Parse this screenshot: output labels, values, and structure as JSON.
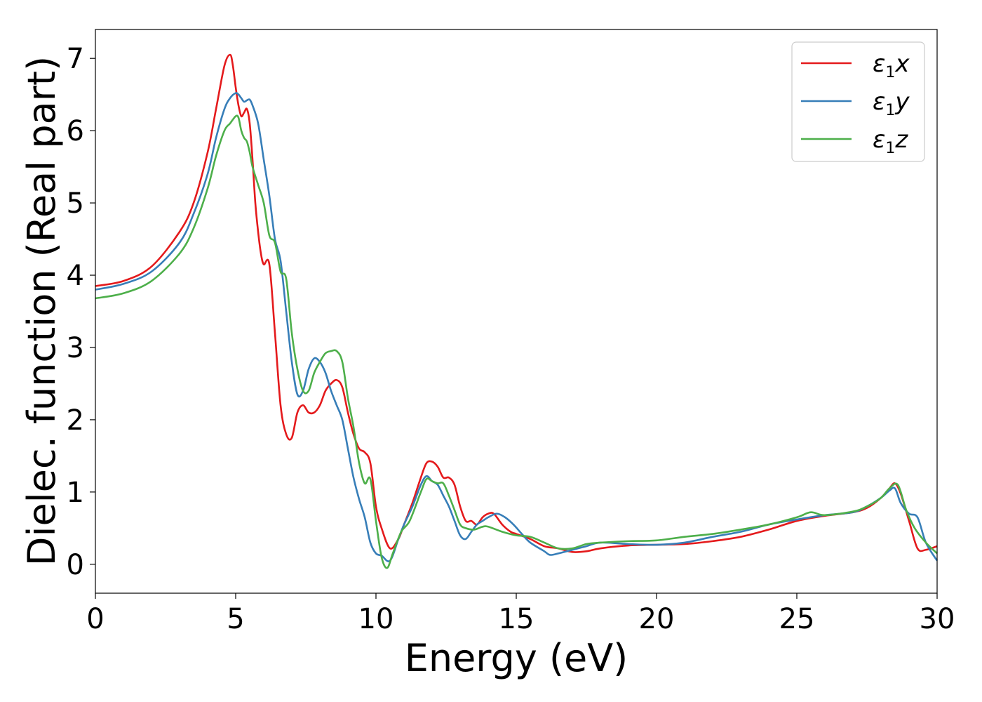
{
  "chart_data": {
    "type": "line",
    "title": "",
    "xlabel": "Energy (eV)",
    "ylabel": "Dielec. function (Real part)",
    "xlim": [
      0,
      30
    ],
    "ylim": [
      -0.4,
      7.4
    ],
    "xticks": [
      0,
      5,
      10,
      15,
      20,
      25,
      30
    ],
    "yticks": [
      0,
      1,
      2,
      3,
      4,
      5,
      6,
      7
    ],
    "grid": false,
    "legend_position": "top-right",
    "series": [
      {
        "name_main": "ε",
        "name_sub": "1",
        "name_var": "x",
        "color": "#e41a1c",
        "x": [
          0,
          1,
          2,
          3,
          3.5,
          4,
          4.3,
          4.6,
          4.8,
          4.9,
          5.0,
          5.1,
          5.2,
          5.3,
          5.4,
          5.5,
          5.6,
          5.7,
          5.8,
          5.9,
          6.0,
          6.2,
          6.4,
          6.6,
          6.8,
          7.0,
          7.2,
          7.4,
          7.6,
          7.8,
          8.0,
          8.2,
          8.4,
          8.6,
          8.8,
          9.0,
          9.2,
          9.4,
          9.6,
          9.8,
          10.0,
          10.2,
          10.5,
          10.8,
          11.0,
          11.3,
          11.6,
          11.8,
          12.0,
          12.2,
          12.4,
          12.6,
          12.8,
          13.0,
          13.2,
          13.4,
          13.6,
          13.8,
          14.0,
          14.2,
          14.5,
          14.8,
          15.0,
          15.5,
          16.0,
          16.5,
          17.0,
          17.5,
          18.0,
          19.0,
          20.0,
          21.0,
          22.0,
          23.0,
          24.0,
          25.0,
          26.0,
          27.0,
          27.5,
          28.0,
          28.3,
          28.5,
          28.7,
          29.0,
          29.3,
          29.6,
          30.0
        ],
        "values": [
          3.85,
          3.92,
          4.12,
          4.6,
          5.0,
          5.7,
          6.3,
          6.9,
          7.05,
          6.9,
          6.6,
          6.35,
          6.2,
          6.25,
          6.3,
          6.1,
          5.6,
          5.0,
          4.6,
          4.3,
          4.15,
          4.15,
          3.2,
          2.2,
          1.8,
          1.75,
          2.1,
          2.2,
          2.1,
          2.1,
          2.2,
          2.4,
          2.5,
          2.55,
          2.45,
          2.1,
          1.8,
          1.6,
          1.55,
          1.4,
          0.8,
          0.5,
          0.22,
          0.35,
          0.55,
          0.85,
          1.2,
          1.4,
          1.42,
          1.35,
          1.2,
          1.2,
          1.1,
          0.8,
          0.6,
          0.6,
          0.55,
          0.65,
          0.7,
          0.7,
          0.55,
          0.45,
          0.42,
          0.35,
          0.25,
          0.22,
          0.17,
          0.18,
          0.22,
          0.26,
          0.27,
          0.28,
          0.32,
          0.38,
          0.48,
          0.6,
          0.67,
          0.72,
          0.78,
          0.92,
          1.05,
          1.12,
          0.98,
          0.6,
          0.22,
          0.2,
          0.25
        ]
      },
      {
        "name_main": "ε",
        "name_sub": "1",
        "name_var": "y",
        "color": "#377eb8",
        "x": [
          0,
          1,
          2,
          3,
          3.5,
          4,
          4.3,
          4.6,
          4.8,
          5.0,
          5.1,
          5.2,
          5.3,
          5.4,
          5.5,
          5.6,
          5.8,
          6.0,
          6.2,
          6.4,
          6.6,
          6.8,
          7.0,
          7.2,
          7.4,
          7.6,
          7.8,
          8.0,
          8.2,
          8.4,
          8.6,
          8.8,
          9.0,
          9.2,
          9.4,
          9.6,
          9.8,
          10.0,
          10.2,
          10.5,
          10.8,
          11.0,
          11.3,
          11.6,
          11.8,
          12.0,
          12.2,
          12.4,
          12.6,
          12.8,
          13.0,
          13.2,
          13.4,
          13.6,
          13.8,
          14.0,
          14.3,
          14.6,
          14.9,
          15.2,
          15.5,
          16.0,
          16.2,
          16.5,
          17.0,
          17.5,
          18.0,
          19.0,
          20.0,
          21.0,
          22.0,
          23.0,
          24.0,
          25.0,
          26.0,
          27.0,
          27.5,
          28.0,
          28.3,
          28.5,
          28.7,
          29.0,
          29.3,
          29.6,
          30.0
        ],
        "values": [
          3.8,
          3.88,
          4.05,
          4.45,
          4.85,
          5.4,
          5.9,
          6.3,
          6.45,
          6.52,
          6.5,
          6.45,
          6.4,
          6.42,
          6.43,
          6.35,
          6.1,
          5.6,
          5.1,
          4.5,
          4.2,
          3.5,
          2.8,
          2.35,
          2.4,
          2.7,
          2.85,
          2.8,
          2.65,
          2.4,
          2.2,
          2.0,
          1.6,
          1.2,
          0.9,
          0.65,
          0.3,
          0.15,
          0.12,
          0.05,
          0.35,
          0.55,
          0.8,
          1.1,
          1.22,
          1.15,
          1.1,
          0.95,
          0.8,
          0.6,
          0.4,
          0.35,
          0.45,
          0.55,
          0.6,
          0.65,
          0.7,
          0.65,
          0.55,
          0.42,
          0.3,
          0.18,
          0.13,
          0.15,
          0.2,
          0.25,
          0.3,
          0.28,
          0.27,
          0.3,
          0.38,
          0.45,
          0.55,
          0.62,
          0.68,
          0.72,
          0.8,
          0.92,
          1.02,
          1.05,
          0.85,
          0.7,
          0.65,
          0.3,
          0.05
        ]
      },
      {
        "name_main": "ε",
        "name_sub": "1",
        "name_var": "z",
        "color": "#4daf4a",
        "x": [
          0,
          1,
          2,
          3,
          3.5,
          4,
          4.3,
          4.6,
          4.8,
          5.0,
          5.1,
          5.2,
          5.3,
          5.4,
          5.5,
          5.6,
          5.8,
          6.0,
          6.2,
          6.4,
          6.6,
          6.8,
          7.0,
          7.2,
          7.4,
          7.6,
          7.8,
          8.0,
          8.2,
          8.4,
          8.6,
          8.8,
          9.0,
          9.2,
          9.4,
          9.6,
          9.8,
          10.0,
          10.2,
          10.4,
          10.6,
          10.9,
          11.2,
          11.6,
          11.8,
          12.0,
          12.2,
          12.4,
          12.6,
          12.8,
          13.0,
          13.2,
          13.5,
          13.8,
          14.0,
          14.5,
          15.0,
          15.5,
          16.0,
          16.5,
          17.0,
          17.5,
          18.0,
          19.0,
          20.0,
          21.0,
          22.0,
          23.0,
          24.0,
          25.0,
          25.5,
          26.0,
          27.0,
          27.5,
          28.0,
          28.3,
          28.6,
          28.9,
          29.2,
          29.6,
          30.0
        ],
        "values": [
          3.68,
          3.75,
          3.92,
          4.3,
          4.65,
          5.2,
          5.65,
          6.0,
          6.1,
          6.2,
          6.18,
          6.0,
          5.9,
          5.85,
          5.7,
          5.5,
          5.25,
          5.0,
          4.55,
          4.45,
          4.05,
          3.95,
          3.2,
          2.7,
          2.4,
          2.4,
          2.65,
          2.8,
          2.92,
          2.95,
          2.95,
          2.8,
          2.3,
          1.9,
          1.4,
          1.12,
          1.18,
          0.6,
          0.1,
          -0.05,
          0.15,
          0.45,
          0.6,
          1.0,
          1.18,
          1.15,
          1.12,
          1.12,
          0.95,
          0.75,
          0.55,
          0.5,
          0.48,
          0.52,
          0.52,
          0.45,
          0.4,
          0.38,
          0.3,
          0.22,
          0.22,
          0.28,
          0.3,
          0.32,
          0.33,
          0.38,
          0.42,
          0.48,
          0.55,
          0.65,
          0.72,
          0.68,
          0.73,
          0.8,
          0.92,
          1.05,
          1.1,
          0.75,
          0.5,
          0.3,
          0.15
        ]
      }
    ]
  }
}
